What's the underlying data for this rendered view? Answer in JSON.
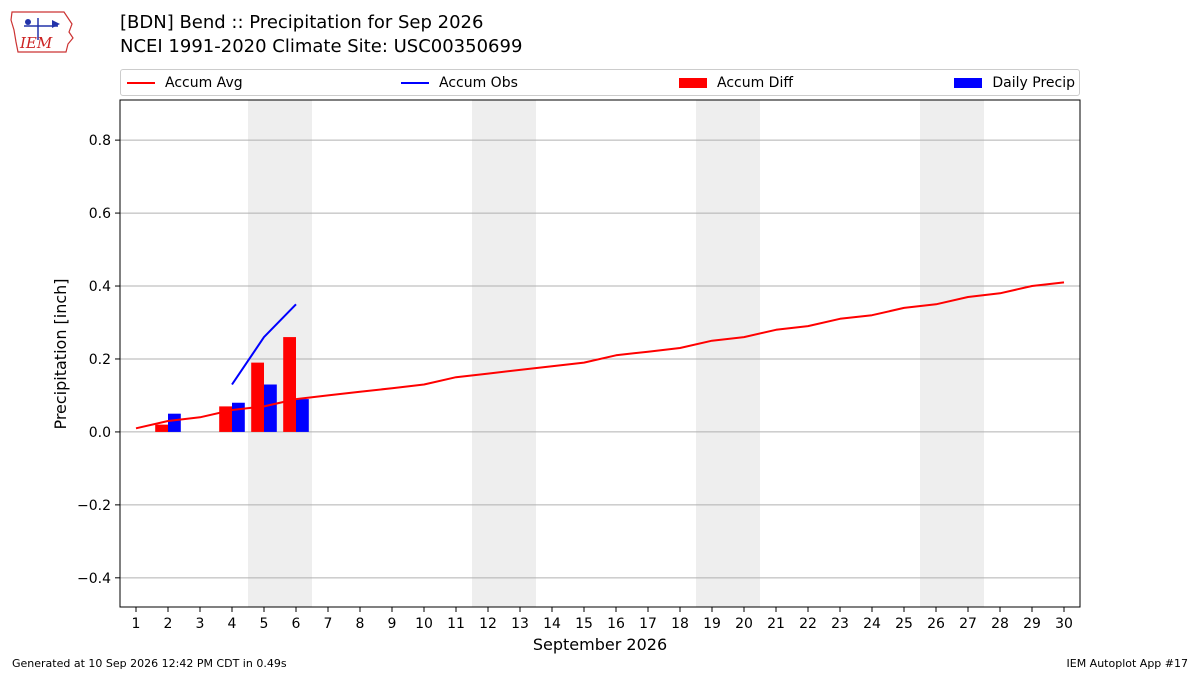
{
  "header": {
    "title_line1": "[BDN] Bend :: Precipitation for Sep 2026",
    "title_line2": "NCEI 1991-2020 Climate Site: USC00350699"
  },
  "logo": {
    "text": "IEM",
    "icon": "iem-iowa-weather-station-logo"
  },
  "footer": {
    "left": "Generated at 10 Sep 2026 12:42 PM CDT in 0.49s",
    "right": "IEM Autoplot App #17"
  },
  "colors": {
    "avg": "#ff0000",
    "obs": "#0000ff",
    "diff": "#ff0000",
    "daily": "#0000ff",
    "weekend_shade": "#eeeeee",
    "grid": "#b0b0b0"
  },
  "chart_data": {
    "type": "bar",
    "title": "[BDN] Bend :: Precipitation for Sep 2026",
    "subtitle": "NCEI 1991-2020 Climate Site: USC00350699",
    "xlabel": "September 2026",
    "ylabel": "Precipitation [inch]",
    "xlim": [
      0.5,
      30.5
    ],
    "ylim": [
      -0.48,
      0.91
    ],
    "x_ticks": [
      1,
      2,
      3,
      4,
      5,
      6,
      7,
      8,
      9,
      10,
      11,
      12,
      13,
      14,
      15,
      16,
      17,
      18,
      19,
      20,
      21,
      22,
      23,
      24,
      25,
      26,
      27,
      28,
      29,
      30
    ],
    "y_ticks": [
      -0.4,
      -0.2,
      0.0,
      0.2,
      0.4,
      0.6,
      0.8
    ],
    "y_tick_labels": [
      "−0.4",
      "−0.2",
      "0.0",
      "0.2",
      "0.4",
      "0.6",
      "0.8"
    ],
    "grid": "horizontal",
    "legend_position": "top",
    "shaded_weekend_spans": [
      [
        5,
        6
      ],
      [
        12,
        13
      ],
      [
        19,
        20
      ],
      [
        26,
        27
      ]
    ],
    "series": [
      {
        "name": "Accum Avg",
        "kind": "line",
        "x": [
          1,
          2,
          3,
          4,
          5,
          6,
          7,
          8,
          9,
          10,
          11,
          12,
          13,
          14,
          15,
          16,
          17,
          18,
          19,
          20,
          21,
          22,
          23,
          24,
          25,
          26,
          27,
          28,
          29,
          30
        ],
        "values": [
          0.01,
          0.03,
          0.04,
          0.06,
          0.07,
          0.09,
          0.1,
          0.11,
          0.12,
          0.13,
          0.15,
          0.16,
          0.17,
          0.18,
          0.19,
          0.21,
          0.22,
          0.23,
          0.25,
          0.26,
          0.28,
          0.29,
          0.31,
          0.32,
          0.34,
          0.35,
          0.37,
          0.38,
          0.4,
          0.41
        ]
      },
      {
        "name": "Accum Obs",
        "kind": "line",
        "x": [
          4,
          5,
          6
        ],
        "values": [
          0.13,
          0.26,
          0.35
        ]
      },
      {
        "name": "Accum Diff",
        "kind": "bar",
        "x": [
          2,
          4,
          5,
          6
        ],
        "values": [
          0.02,
          0.07,
          0.19,
          0.26
        ]
      },
      {
        "name": "Daily Precip",
        "kind": "bar",
        "x": [
          2,
          4,
          5,
          6
        ],
        "values": [
          0.05,
          0.08,
          0.13,
          0.09
        ]
      }
    ]
  }
}
